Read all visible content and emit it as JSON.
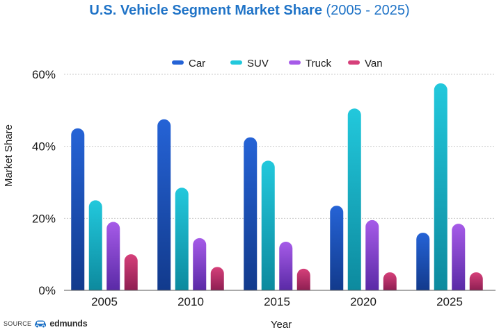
{
  "title": {
    "main": "U.S. Vehicle Segment Market Share",
    "sub": "(2005 - 2025)"
  },
  "source": {
    "label": "SOURCE",
    "brand": "edmunds",
    "logo_icon": "car-icon",
    "logo_color": "#1f73c7"
  },
  "chart_data": {
    "type": "bar",
    "title": "U.S. Vehicle Segment Market Share (2005 - 2025)",
    "xlabel": "Year",
    "ylabel": "Market Share",
    "categories": [
      "2005",
      "2010",
      "2015",
      "2020",
      "2025"
    ],
    "ylim": [
      0,
      60
    ],
    "yticks": [
      0,
      20,
      40,
      60
    ],
    "ytick_labels": [
      "0%",
      "20%",
      "40%",
      "60%"
    ],
    "grid": true,
    "legend_position": "top-center",
    "series": [
      {
        "name": "Car",
        "values": [
          45,
          47.5,
          42.5,
          23.5,
          16
        ],
        "color": "#2563d6",
        "color_dark": "#123a8c"
      },
      {
        "name": "SUV",
        "values": [
          25,
          28.5,
          36,
          50.5,
          57.5
        ],
        "color": "#22c8dc",
        "color_dark": "#0d8a9e"
      },
      {
        "name": "Truck",
        "values": [
          19,
          14.5,
          13.5,
          19.5,
          18.5
        ],
        "color": "#a65be8",
        "color_dark": "#5a2aa6"
      },
      {
        "name": "Van",
        "values": [
          10,
          6.5,
          6,
          5,
          5
        ],
        "color": "#d6407a",
        "color_dark": "#8e1f52"
      }
    ]
  }
}
